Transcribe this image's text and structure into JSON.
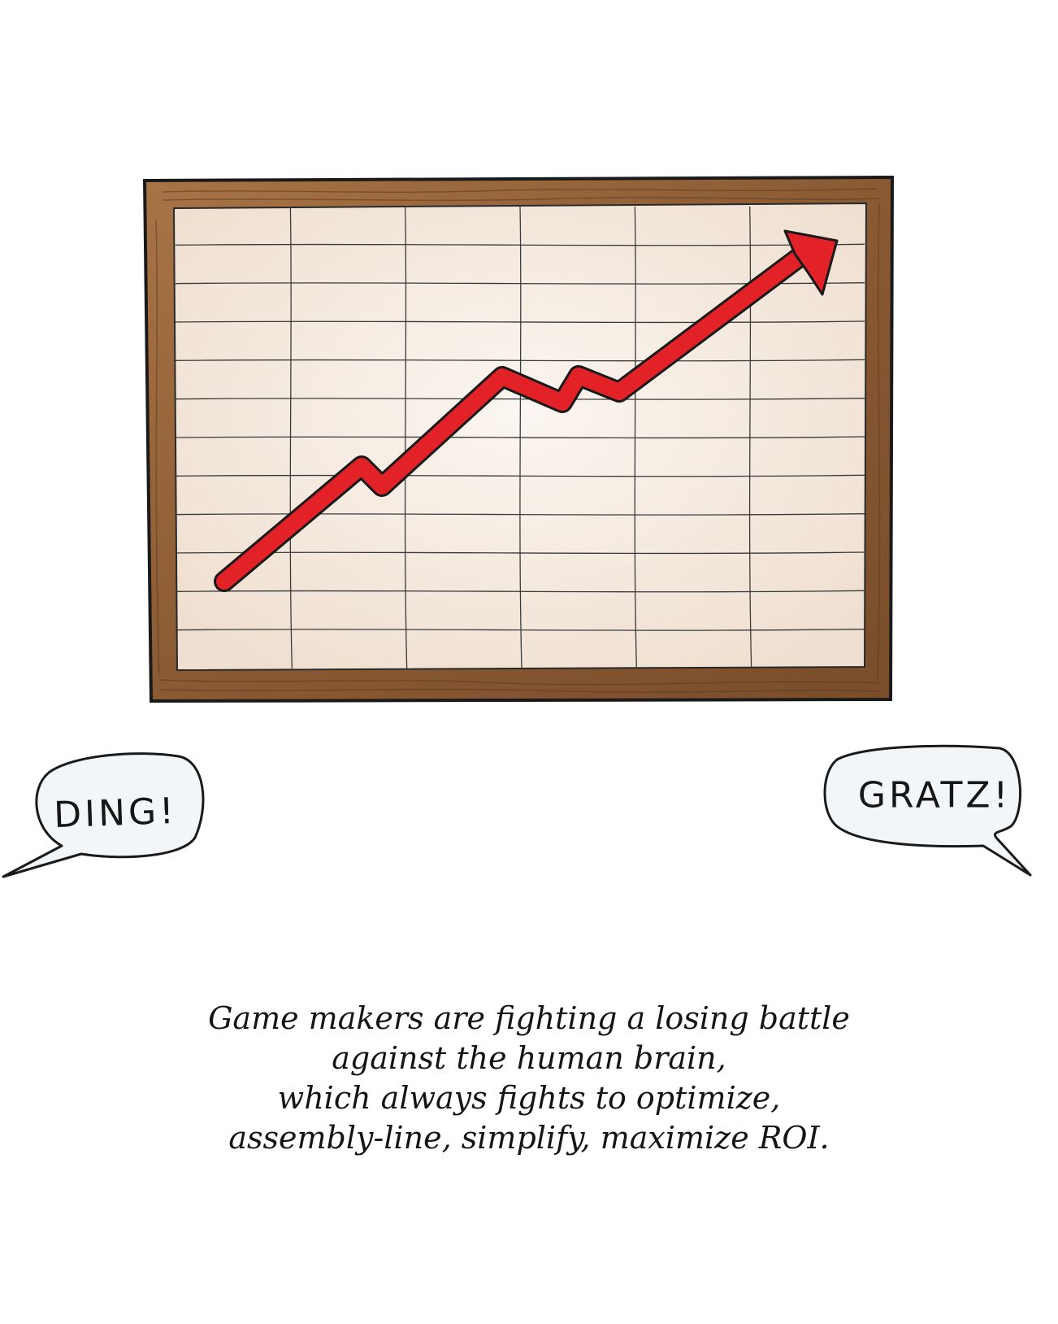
{
  "chart": {
    "type": "line",
    "trend": "upward",
    "arrow_color": "#e32228",
    "grid_columns": 6,
    "grid_rows": 12
  },
  "colors": {
    "frame_wood": "#8a5a33",
    "frame_wood_light": "#a87446",
    "paper": "#f6ece2",
    "arrow": "#e32228",
    "ink": "#161616"
  },
  "speech": {
    "left": "DING!",
    "right": "GRATZ!"
  },
  "caption": {
    "lines": [
      "Game makers are fighting a losing battle",
      "against the human brain,",
      "which always fights to optimize,",
      "assembly-line, simplify, maximize ROI."
    ]
  }
}
